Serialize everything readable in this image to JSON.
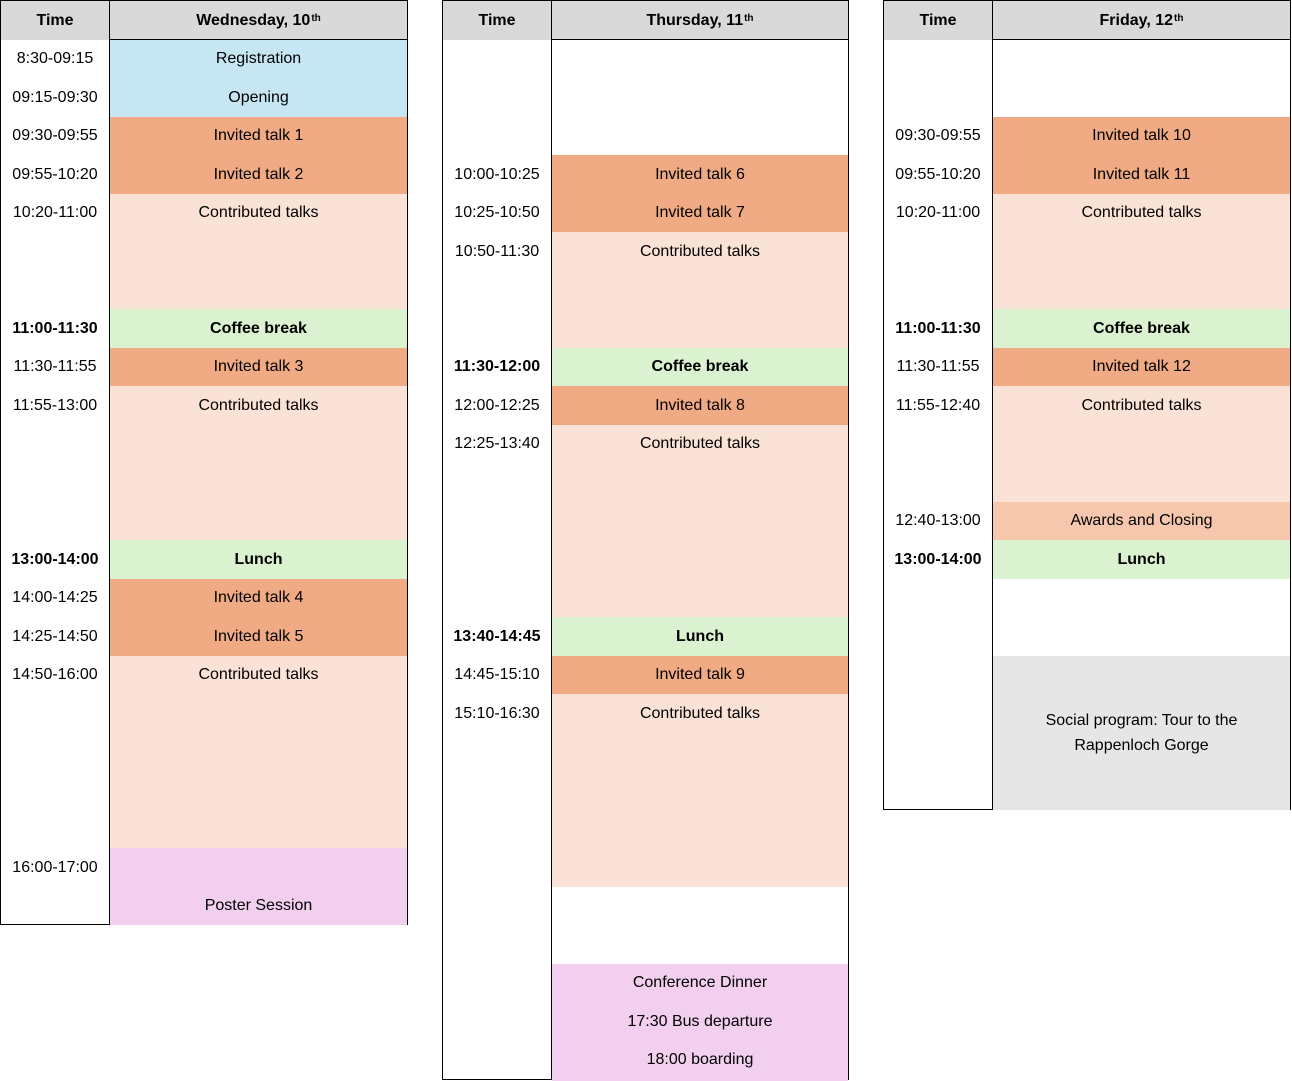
{
  "time_header": "Time",
  "wednesday": {
    "day": "Wednesday, 10",
    "sup": "th",
    "times": [
      "8:30-09:15",
      "09:15-09:30",
      "09:30-09:55",
      "09:55-10:20",
      "10:20-11:00",
      "11:00-11:30",
      "11:30-11:55",
      "11:55-13:00",
      "13:00-14:00",
      "14:00-14:25",
      "14:25-14:50",
      "14:50-16:00",
      "16:00-17:00"
    ],
    "events": [
      "Registration",
      "Opening",
      "Invited talk 1",
      "Invited talk 2",
      "Contributed talks",
      "Coffee break",
      "Invited talk 3",
      "Contributed talks",
      "Lunch",
      "Invited talk 4",
      "Invited talk 5",
      "Contributed talks",
      "Poster Session"
    ]
  },
  "thursday": {
    "day": "Thursday, 11",
    "sup": "th",
    "times": [
      "10:00-10:25",
      "10:25-10:50",
      "10:50-11:30",
      "11:30-12:00",
      "12:00-12:25",
      "12:25-13:40",
      "13:40-14:45",
      "14:45-15:10",
      "15:10-16:30"
    ],
    "events": [
      "Invited talk 6",
      "Invited talk 7",
      "Contributed talks",
      "Coffee break",
      "Invited talk 8",
      "Contributed talks",
      "Lunch",
      "Invited talk 9",
      "Contributed talks"
    ],
    "dinner": [
      "Conference Dinner",
      "17:30 Bus departure",
      "18:00 boarding"
    ]
  },
  "friday": {
    "day": "Friday, 12",
    "sup": "th",
    "times": [
      "09:30-09:55",
      "09:55-10:20",
      "10:20-11:00",
      "11:00-11:30",
      "11:30-11:55",
      "11:55-12:40",
      "12:40-13:00",
      "13:00-14:00"
    ],
    "events": [
      "Invited talk 10",
      "Invited talk 11",
      "Contributed talks",
      "Coffee break",
      "Invited talk 12",
      "Contributed talks",
      "Awards and Closing",
      "Lunch"
    ],
    "social": [
      "Social program: Tour to the",
      "Rappenloch Gorge"
    ]
  },
  "colors": {
    "header": "#d9d9d9",
    "registration": "#c6e6f4",
    "invited_talk": "#f0aa84",
    "contributed_talks": "#fbe2d6",
    "break": "#daf2d0",
    "poster_dinner": "#f2cfee",
    "awards": "#f6c7ad",
    "social": "#e6e6e6"
  }
}
